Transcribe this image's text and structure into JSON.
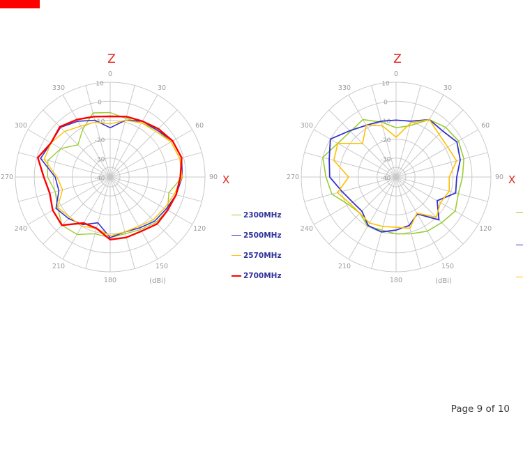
{
  "page": {
    "footer_text": "Page 9 of 10",
    "background": "#ffffff"
  },
  "decorations": {
    "top_left_bar_color": "#fe0000"
  },
  "colors": {
    "grid": "#c9c9c9",
    "tick_label": "#9b9b9b",
    "axis_letter": "#e0251c",
    "legend_text": "#32329b"
  },
  "chart_data": [
    {
      "type": "polar-line",
      "plane_label_top": "Z",
      "plane_label_right": "X",
      "unit_label": "(dBi)",
      "angle_tick_labels": [
        "0",
        "30",
        "60",
        "90",
        "120",
        "150",
        "180",
        "210",
        "240",
        "270",
        "300",
        "330"
      ],
      "radial_tick_labels": [
        "10",
        "0",
        "-10",
        "-20",
        "-30",
        "-40"
      ],
      "radial_tick_values": [
        10,
        0,
        -10,
        -20,
        -30,
        -40
      ],
      "radial_range_dbi": [
        -40,
        10
      ],
      "ring_step_dbi": 10,
      "angle_step_deg": 15,
      "grid": true,
      "legend_position": "right-of-chart",
      "series": [
        {
          "name": "2300MHz",
          "color": "#9acd32",
          "width": 1.4,
          "values_dbi": [
            -6,
            -8,
            -7,
            -5,
            -3,
            -2,
            -2,
            -8,
            -5,
            -6,
            -8,
            -9,
            -8,
            -9,
            -5,
            -4,
            -8,
            -10,
            -7,
            -6,
            -10,
            -16,
            -11,
            -5
          ]
        },
        {
          "name": "2500MHz",
          "color": "#3333cc",
          "width": 1.6,
          "values_dbi": [
            -14,
            -9,
            -6,
            -5,
            -2,
            -1,
            -2,
            -4,
            -6,
            -7,
            -9,
            -10,
            -8,
            -15,
            -11,
            -9,
            -7,
            -12,
            -11,
            -2,
            -4,
            -3,
            -6,
            -9
          ]
        },
        {
          "name": "2570MHz",
          "color": "#ffc000",
          "width": 1.4,
          "values_dbi": [
            -12,
            -9,
            -7,
            -6,
            -3,
            -2,
            -2,
            -5,
            -7,
            -8,
            -10,
            -10,
            -9,
            -12,
            -10,
            -10,
            -8,
            -14,
            -12,
            -4,
            -4,
            -6,
            -9,
            -10
          ]
        },
        {
          "name": "2700MHz",
          "color": "#ff0000",
          "width": 2.4,
          "values_dbi": [
            -8,
            -7,
            -6,
            -4,
            -2,
            -1,
            -3,
            -4,
            -5,
            -5,
            -7,
            -7,
            -7,
            -12,
            -12,
            -4,
            -5,
            -7,
            -5,
            -0.5,
            -4,
            -2.5,
            -5,
            -7
          ]
        }
      ]
    },
    {
      "type": "polar-line",
      "plane_label_top": "Z",
      "plane_label_right": "X",
      "unit_label": "(dBi)",
      "angle_tick_labels": [
        "0",
        "30",
        "60",
        "90",
        "120",
        "150",
        "180",
        "210",
        "240",
        "270",
        "300",
        "330"
      ],
      "radial_tick_labels": [
        "10",
        "0",
        "-10",
        "-20",
        "-30",
        "-40"
      ],
      "radial_tick_values": [
        10,
        0,
        -10,
        -20,
        -30,
        -40
      ],
      "radial_range_dbi": [
        -40,
        10
      ],
      "ring_step_dbi": 10,
      "angle_step_deg": 15,
      "grid": true,
      "legend_position": "clipped-at-right-page-edge",
      "series": [
        {
          "name": "",
          "color": "#9acd32",
          "width": 1.6,
          "values_dbi": [
            -14,
            -12,
            -5,
            -3,
            -2,
            -3,
            -5,
            -6,
            -4,
            -6,
            -7,
            -9,
            -10,
            -11,
            -10,
            -13,
            -11,
            -5,
            -3,
            0,
            -4.5,
            -6,
            -5,
            -10
          ]
        },
        {
          "name": "",
          "color": "#3333cc",
          "width": 1.8,
          "values_dbi": [
            -10,
            -9.5,
            -5,
            -5.5,
            -3,
            -5,
            -8,
            -7.5,
            -15,
            -8,
            -17.5,
            -13.5,
            -12,
            -10,
            -10.5,
            -14.5,
            -13.5,
            -10.5,
            -5,
            -3.5,
            0,
            -5.5,
            -8.5,
            -9.5
          ]
        },
        {
          "name": "",
          "color": "#ffc000",
          "width": 1.6,
          "values_dbi": [
            -19,
            -10.5,
            -5,
            -8,
            -8.5,
            -7,
            -12,
            -11,
            -13,
            -10,
            -18,
            -12,
            -13.5,
            -13,
            -12,
            -13,
            -12,
            -8,
            -15,
            -6,
            -4.5,
            -15,
            -8.5,
            -12
          ]
        }
      ]
    }
  ]
}
